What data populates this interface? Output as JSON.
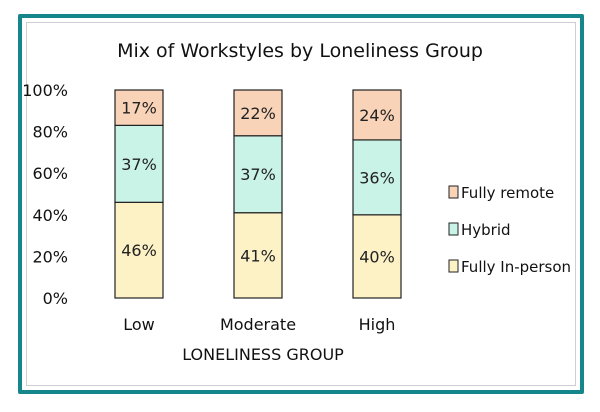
{
  "chart_data": {
    "type": "bar",
    "stacked": true,
    "title": "Mix of Workstyles by Loneliness Group",
    "xlabel": "LONELINESS GROUP",
    "ylabel": "",
    "ylim": [
      0,
      100
    ],
    "yticks": [
      "0%",
      "20%",
      "40%",
      "60%",
      "80%",
      "100%"
    ],
    "categories": [
      "Low",
      "Moderate",
      "High"
    ],
    "series": [
      {
        "name": "Fully In-person",
        "values": [
          46,
          41,
          40
        ],
        "labels": [
          "46%",
          "41%",
          "40%"
        ],
        "color": "#fdf2c6"
      },
      {
        "name": "Hybrid",
        "values": [
          37,
          37,
          36
        ],
        "labels": [
          "37%",
          "37%",
          "36%"
        ],
        "color": "#c9f3e6"
      },
      {
        "name": "Fully remote",
        "values": [
          17,
          22,
          24
        ],
        "labels": [
          "17%",
          "22%",
          "24%"
        ],
        "color": "#f8d3b8"
      }
    ],
    "legend": {
      "position": "right",
      "order": [
        "Fully remote",
        "Hybrid",
        "Fully In-person"
      ]
    },
    "grid": false
  },
  "colors": {
    "frame": "#14868c",
    "bar_outline": "#222222"
  }
}
